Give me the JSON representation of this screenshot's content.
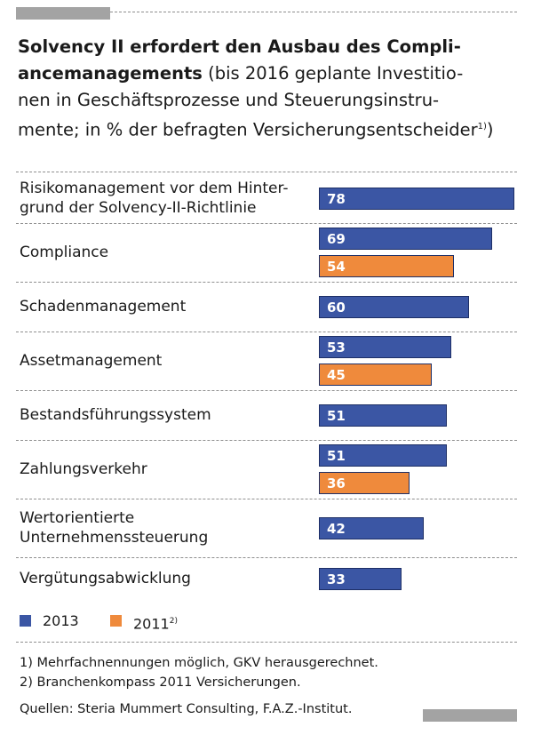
{
  "header": {
    "title_bold": "Solvency II erfordert den Ausbau des Compli­ancemanagements",
    "title_line1": "Solvency II erfordert den Ausbau des Compli-",
    "title_line2_bold": "ancemanagements",
    "title_line2_rest": " (bis 2016 geplante Investitio-",
    "title_line3": "nen in Geschäftsprozesse und Steuerungsinstru-",
    "title_line4": "mente; in % der befragten Versicherungsentscheider",
    "title_sup": "1)",
    "title_close": ")"
  },
  "chart_data": {
    "type": "bar",
    "orientation": "horizontal",
    "title": "Solvency II erfordert den Ausbau des Compliancemanagements",
    "subtitle": "bis 2016 geplante Investitionen in Geschäftsprozesse und Steuerungsinstrumente; in % der befragten Versicherungsentscheider",
    "xlim": [
      0,
      78
    ],
    "categories": [
      {
        "label_lines": [
          "Risikomanagement vor dem Hinter-",
          "grund der Solvency-II-Richtlinie"
        ],
        "v2013": 78,
        "v2011": null
      },
      {
        "label_lines": [
          "Compliance"
        ],
        "v2013": 69,
        "v2011": 54
      },
      {
        "label_lines": [
          "Schadenmanagement"
        ],
        "v2013": 60,
        "v2011": null
      },
      {
        "label_lines": [
          "Assetmanagement"
        ],
        "v2013": 53,
        "v2011": 45
      },
      {
        "label_lines": [
          "Bestandsführungssystem"
        ],
        "v2013": 51,
        "v2011": null
      },
      {
        "label_lines": [
          "Zahlungsverkehr"
        ],
        "v2013": 51,
        "v2011": 36
      },
      {
        "label_lines": [
          "Wertorientierte",
          "Unternehmenssteuerung"
        ],
        "v2013": 42,
        "v2011": null
      },
      {
        "label_lines": [
          "Vergütungsabwicklung"
        ],
        "v2013": 33,
        "v2011": null
      }
    ],
    "series": [
      {
        "name": "2013",
        "color": "#3b56a4"
      },
      {
        "name": "2011",
        "sup": "2)",
        "color": "#ef8a3c"
      }
    ]
  },
  "footnotes": {
    "note1": "1)  Mehrfachnennungen möglich, GKV herausgerechnet.",
    "note2": "2)  Branchenkompass 2011 Versicherungen.",
    "sources": "Quellen: Steria Mummert Consulting, F.A.Z.-Institut."
  }
}
